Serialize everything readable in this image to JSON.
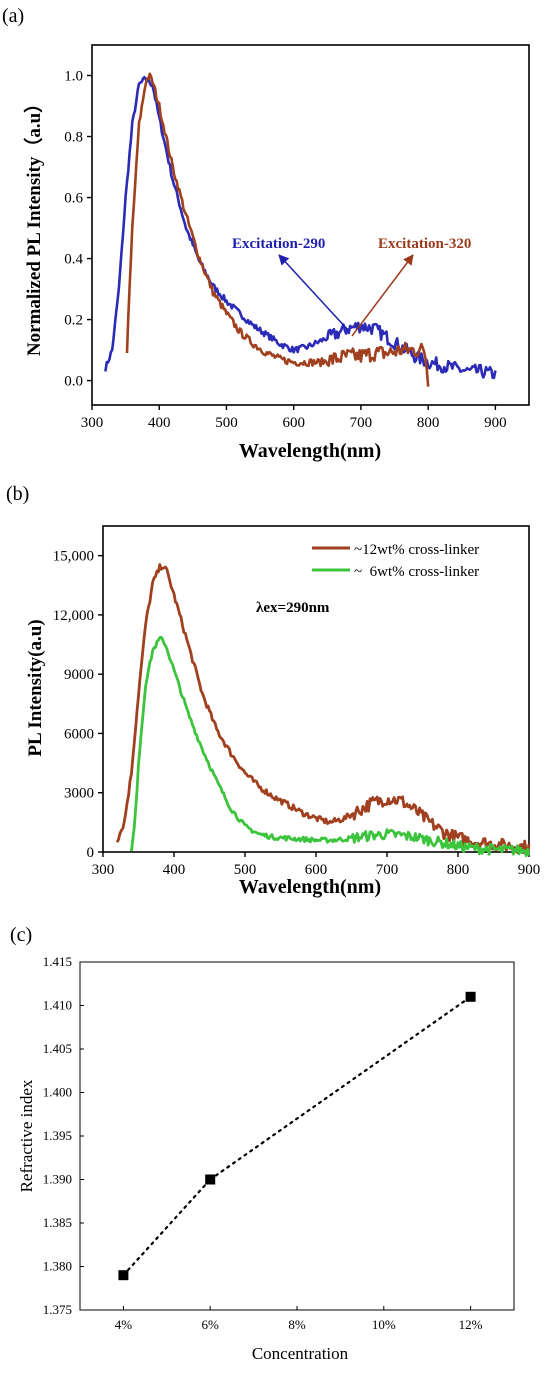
{
  "chart_data": [
    {
      "panel_label": "(a)",
      "type": "line",
      "xlabel": "Wavelength(nm)",
      "ylabel": "Normalized PL Intensity（a.u）",
      "xlim": [
        300,
        950
      ],
      "ylim": [
        -0.08,
        1.1
      ],
      "xticks": [
        "300",
        "400",
        "500",
        "600",
        "700",
        "800",
        "900"
      ],
      "yticks": [
        "0.0",
        "0.2",
        "0.4",
        "0.6",
        "0.8",
        "1.0"
      ],
      "annotations": [
        {
          "text": "Excitation-290",
          "color": "#1f1fae",
          "arrow_to": [
            625,
            0.37
          ]
        },
        {
          "text": "Excitation-320",
          "color": "#9b3a1c",
          "arrow_to": [
            820,
            0.4
          ]
        }
      ],
      "series": [
        {
          "color": "#2b2bb8",
          "noise": 0.01,
          "x": [
            320,
            330,
            340,
            350,
            360,
            370,
            380,
            390,
            400,
            420,
            440,
            460,
            480,
            500,
            520,
            540,
            560,
            580,
            600,
            620,
            640,
            660,
            680,
            700,
            720,
            740,
            760,
            780,
            800,
            820,
            840,
            860,
            880,
            900
          ],
          "y": [
            0.04,
            0.1,
            0.3,
            0.6,
            0.84,
            0.97,
            0.99,
            0.97,
            0.86,
            0.66,
            0.5,
            0.39,
            0.31,
            0.26,
            0.22,
            0.18,
            0.15,
            0.12,
            0.1,
            0.11,
            0.13,
            0.15,
            0.17,
            0.18,
            0.17,
            0.14,
            0.11,
            0.08,
            0.06,
            0.05,
            0.04,
            0.03,
            0.03,
            0.02
          ]
        },
        {
          "color": "#a0401e",
          "noise": 0.012,
          "x": [
            352,
            360,
            370,
            380,
            385,
            390,
            400,
            420,
            440,
            460,
            480,
            500,
            520,
            540,
            560,
            580,
            600,
            620,
            640,
            660,
            680,
            700,
            720,
            740,
            760,
            780,
            795,
            800
          ],
          "y": [
            0.1,
            0.5,
            0.84,
            0.98,
            1.0,
            0.98,
            0.9,
            0.7,
            0.54,
            0.4,
            0.29,
            0.22,
            0.16,
            0.12,
            0.09,
            0.07,
            0.06,
            0.06,
            0.06,
            0.07,
            0.08,
            0.08,
            0.09,
            0.09,
            0.1,
            0.1,
            0.1,
            0.0
          ]
        }
      ]
    },
    {
      "panel_label": "(b)",
      "type": "line",
      "xlabel": "Wavelength(nm)",
      "ylabel": "PL Intensity(a.u)",
      "xlim": [
        300,
        900
      ],
      "ylim": [
        0,
        16500
      ],
      "xticks": [
        "300",
        "400",
        "500",
        "600",
        "700",
        "800",
        "900"
      ],
      "yticks": [
        "0",
        "3000",
        "6000",
        "9000",
        "12,000",
        "15,000"
      ],
      "annotation": "λex=290nm",
      "legend": [
        {
          "label": "~12wt% cross-linker",
          "color": "#a0401e"
        },
        {
          "label": "~  6wt% cross-linker",
          "color": "#3cc43c"
        }
      ],
      "series": [
        {
          "color": "#a0401e",
          "noise": 150,
          "x": [
            320,
            330,
            340,
            350,
            360,
            370,
            380,
            385,
            390,
            400,
            420,
            440,
            460,
            480,
            500,
            520,
            540,
            560,
            580,
            600,
            620,
            640,
            660,
            680,
            700,
            720,
            740,
            760,
            780,
            800,
            820,
            840,
            860,
            880,
            900
          ],
          "y": [
            600,
            1500,
            4000,
            8000,
            11500,
            13600,
            14400,
            14500,
            14200,
            13000,
            10500,
            8000,
            6200,
            5000,
            4000,
            3300,
            2800,
            2400,
            2000,
            1700,
            1500,
            1700,
            2100,
            2500,
            2700,
            2600,
            2100,
            1500,
            1000,
            700,
            550,
            450,
            350,
            300,
            250
          ]
        },
        {
          "color": "#3cc43c",
          "noise": 120,
          "x": [
            340,
            345,
            350,
            360,
            370,
            380,
            385,
            390,
            400,
            420,
            440,
            460,
            480,
            500,
            520,
            540,
            560,
            580,
            600,
            620,
            640,
            660,
            680,
            700,
            720,
            740,
            760,
            780,
            800,
            820,
            840,
            860,
            880,
            900
          ],
          "y": [
            0,
            1500,
            4500,
            8500,
            10200,
            10800,
            10700,
            10300,
            9200,
            7000,
            5200,
            3600,
            2200,
            1300,
            900,
            750,
            700,
            650,
            600,
            600,
            650,
            750,
            850,
            900,
            850,
            750,
            600,
            450,
            300,
            200,
            150,
            100,
            100,
            50
          ]
        }
      ]
    },
    {
      "panel_label": "(c)",
      "type": "scatter",
      "xlabel": "Concentration",
      "ylabel": "Refractive index",
      "xlim": [
        3,
        13
      ],
      "ylim": [
        1.375,
        1.415
      ],
      "xticks": [
        "4%",
        "6%",
        "8%",
        "10%",
        "12%"
      ],
      "yticks": [
        "1.375",
        "1.380",
        "1.385",
        "1.390",
        "1.395",
        "1.400",
        "1.405",
        "1.410",
        "1.415"
      ],
      "categories": [
        "4%",
        "6%",
        "12%"
      ],
      "values": [
        1.379,
        1.39,
        1.411
      ],
      "x": [
        4,
        6,
        12
      ],
      "fit_line": "dotted"
    }
  ]
}
